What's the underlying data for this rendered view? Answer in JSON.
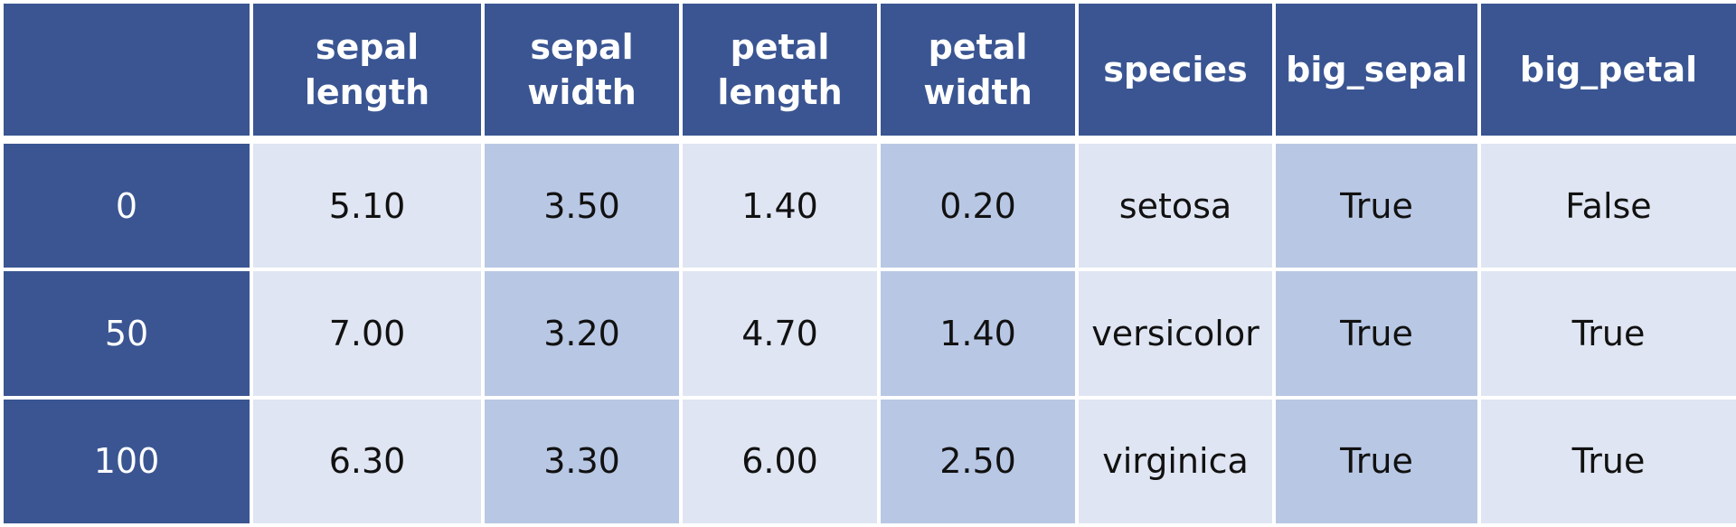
{
  "table": {
    "columns": [
      "",
      "sepal\nlength",
      "sepal\nwidth",
      "petal\nlength",
      "petal\nwidth",
      "species",
      "big_sepal",
      "big_petal"
    ],
    "header_lines": [
      [],
      [
        "sepal",
        "length"
      ],
      [
        "sepal",
        "width"
      ],
      [
        "petal",
        "length"
      ],
      [
        "petal",
        "width"
      ],
      [
        "species"
      ],
      [
        "big_sepal"
      ],
      [
        "big_petal"
      ]
    ],
    "rows": [
      {
        "index": "0",
        "cells": [
          "5.10",
          "3.50",
          "1.40",
          "0.20",
          "setosa",
          "True",
          "False"
        ]
      },
      {
        "index": "50",
        "cells": [
          "7.00",
          "3.20",
          "4.70",
          "1.40",
          "versicolor",
          "True",
          "True"
        ]
      },
      {
        "index": "100",
        "cells": [
          "6.30",
          "3.30",
          "6.00",
          "2.50",
          "virginica",
          "True",
          "True"
        ]
      }
    ]
  },
  "colors": {
    "header_bg": "#3a5592",
    "cell_light": "#dfe5f2",
    "cell_dark": "#b8c7e4",
    "border": "#ffffff"
  }
}
